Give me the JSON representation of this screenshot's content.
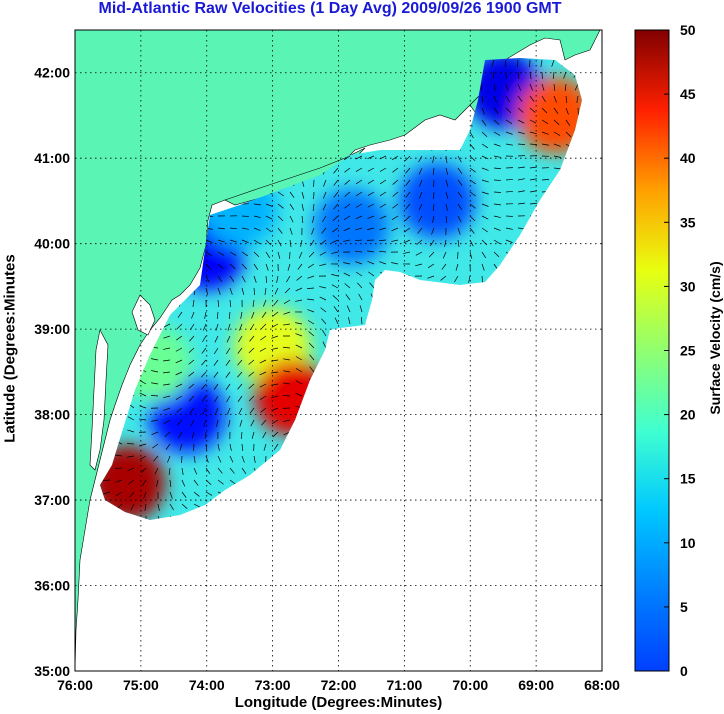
{
  "title": "Mid-Atlantic Raw Velocities (1 Day Avg) 2009/09/26 1900 GMT",
  "map": {
    "xlabel": "Longitude (Degrees:Minutes)",
    "ylabel": "Latitude (Degrees:Minutes",
    "lon_ticks": [
      "76:00",
      "75:00",
      "74:00",
      "73:00",
      "72:00",
      "71:00",
      "70:00",
      "69:00",
      "68:00"
    ],
    "lat_ticks": [
      "42:00",
      "41:00",
      "40:00",
      "39:00",
      "38:00",
      "37:00",
      "36:00",
      "35:00"
    ],
    "lon_range": [
      -76,
      -68
    ],
    "lat_range": [
      35,
      42.5
    ],
    "grid": "dotted",
    "land_color": "#5af5b4",
    "water_color": "#ffffff"
  },
  "colorbar": {
    "label": "Surface Velocity (cm/s)",
    "ticks": [
      "0",
      "5",
      "10",
      "15",
      "20",
      "25",
      "30",
      "35",
      "40",
      "45",
      "50"
    ],
    "range": [
      0,
      50
    ],
    "colormap": "jet"
  },
  "chart_data": {
    "type": "heatmap",
    "title": "Mid-Atlantic Raw Velocities (1 Day Avg) 2009/09/26 1900 GMT",
    "xlabel": "Longitude (Degrees:Minutes)",
    "ylabel": "Latitude (Degrees:Minutes",
    "xlim": [
      -76,
      -68
    ],
    "ylim": [
      35,
      42.5
    ],
    "zlim": [
      0,
      50
    ],
    "zlabel": "Surface Velocity (cm/s)",
    "velocity_regions": [
      {
        "lon": -69.5,
        "lat": 41.8,
        "speed": 5
      },
      {
        "lon": -70.5,
        "lat": 40.5,
        "speed": 10
      },
      {
        "lon": -71.8,
        "lat": 40.2,
        "speed": 12
      },
      {
        "lon": -74.0,
        "lat": 39.9,
        "speed": 6
      },
      {
        "lon": -73.5,
        "lat": 40.4,
        "speed": 15
      },
      {
        "lon": -73.0,
        "lat": 38.8,
        "speed": 30
      },
      {
        "lon": -72.7,
        "lat": 38.2,
        "speed": 45
      },
      {
        "lon": -74.3,
        "lat": 38.0,
        "speed": 7
      },
      {
        "lon": -75.2,
        "lat": 37.2,
        "speed": 48
      },
      {
        "lon": -74.8,
        "lat": 38.6,
        "speed": 24
      },
      {
        "lon": -68.7,
        "lat": 41.5,
        "speed": 40
      }
    ]
  }
}
